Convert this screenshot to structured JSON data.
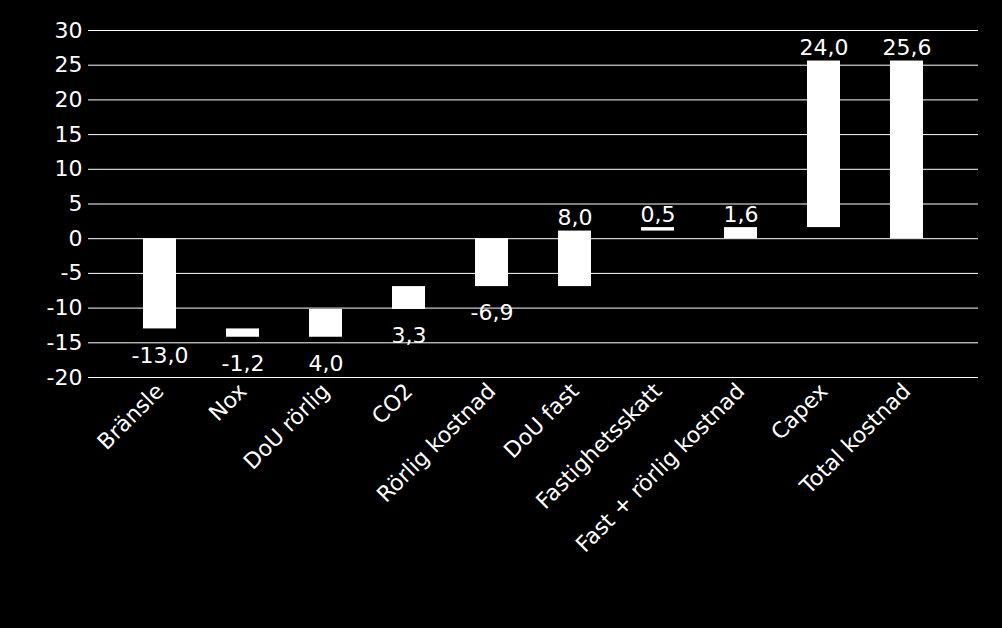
{
  "chart_data": {
    "type": "waterfall",
    "categories": [
      "Bränsle",
      "Nox",
      "DoU rörlig",
      "CO2",
      "Rörlig kostnad",
      "DoU fast",
      "Fastighetsskatt",
      "Fast + rörlig kostnad",
      "Capex",
      "Total kostnad"
    ],
    "values": [
      -13.0,
      -1.2,
      4.0,
      3.3,
      -6.9,
      8.0,
      0.5,
      1.6,
      24.0,
      25.6
    ],
    "value_labels": [
      "-13,0",
      "-1,2",
      "4,0",
      "3,3",
      "-6,9",
      "8,0",
      "0,5",
      "1,6",
      "24,0",
      "25,6"
    ],
    "color": "#ffffff",
    "ylim": [
      -20,
      30
    ],
    "yticks": [
      -20,
      -15,
      -10,
      -5,
      0,
      5,
      10,
      15,
      20,
      25,
      30
    ],
    "grid": true,
    "data_labels": true
  }
}
